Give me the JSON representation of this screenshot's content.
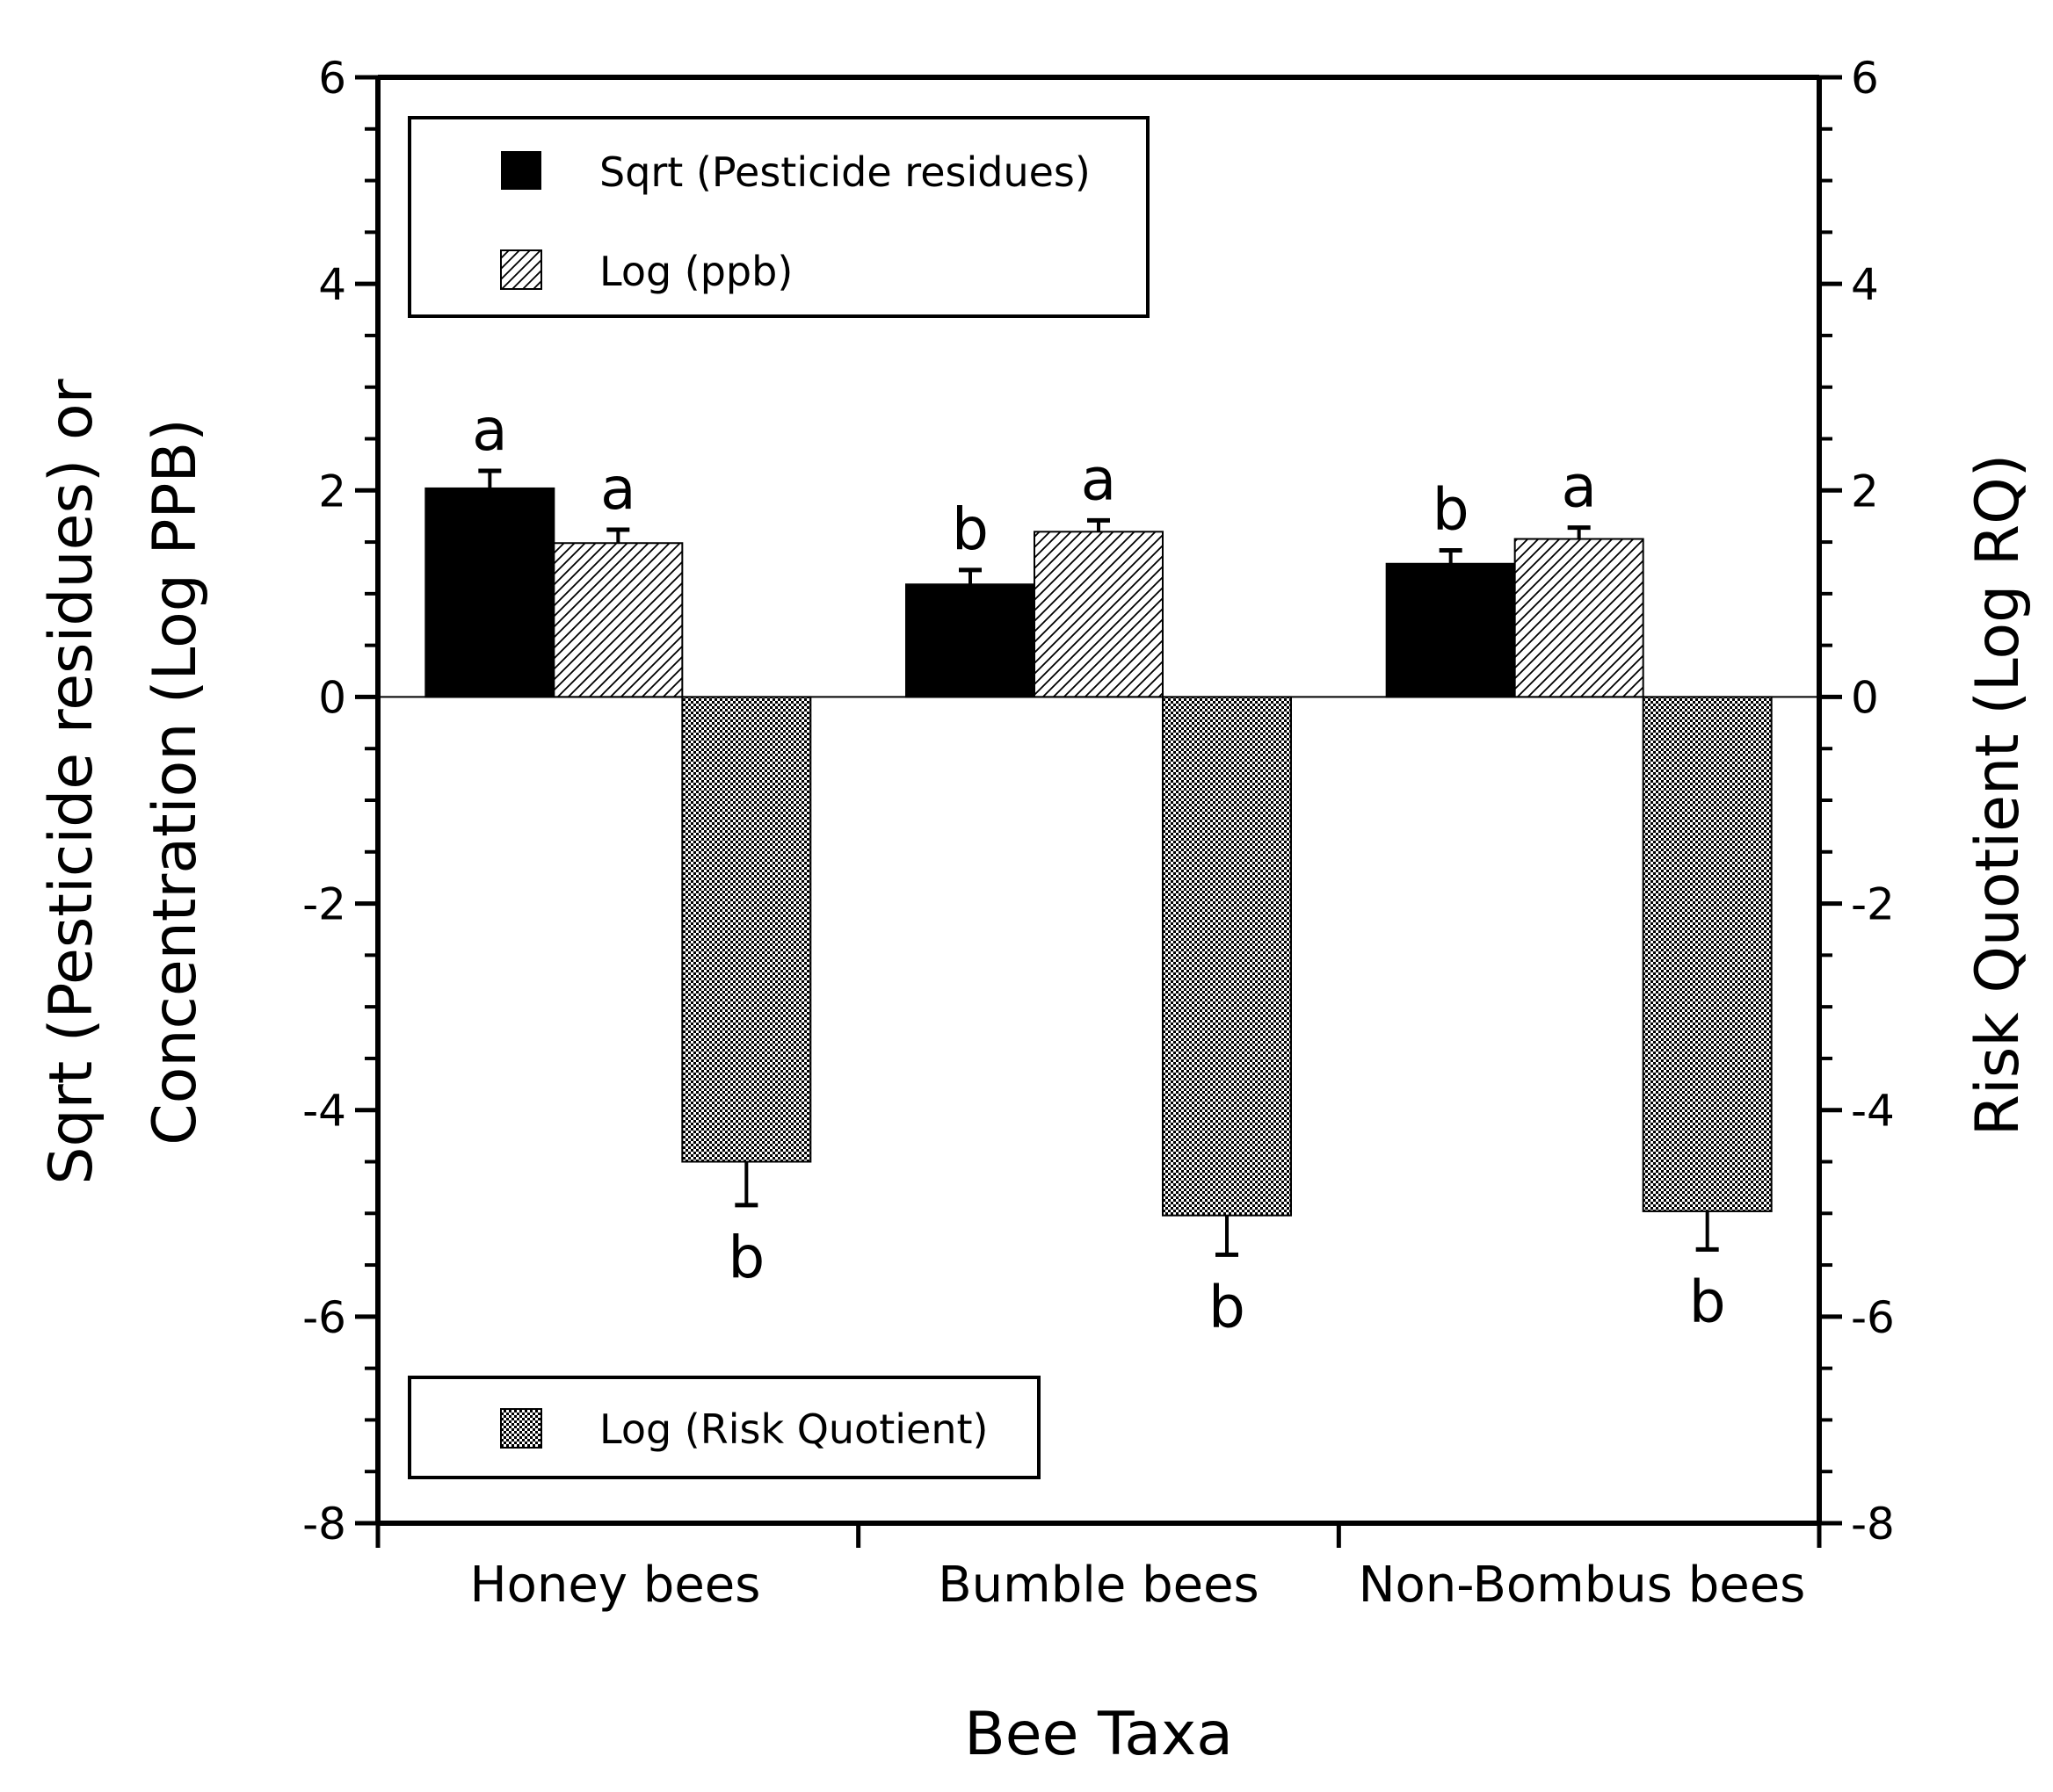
{
  "chart_data": {
    "type": "bar",
    "xlabel": "Bee Taxa",
    "ylabel_lines": [
      "Sqrt (Pesticide residues) or",
      "Concentration (Log PPB)"
    ],
    "y2label": "Risk Quotient (Log RQ)",
    "categories": [
      "Honey bees",
      "Bumble bees",
      "Non-Bombus bees"
    ],
    "ylim": [
      -8,
      6
    ],
    "y2lim": [
      -8,
      6
    ],
    "yticks": [
      6,
      4,
      2,
      0,
      -2,
      -4,
      -6,
      -8
    ],
    "minor_tick_step": 0.5,
    "grid": false,
    "series": [
      {
        "name": "Sqrt (Pesticide residues)",
        "pattern": "solid",
        "values": [
          2.02,
          1.09,
          1.29
        ],
        "errors": [
          0.17,
          0.14,
          0.13
        ],
        "letters": [
          "a",
          "b",
          "b"
        ]
      },
      {
        "name": "Log (ppb)",
        "pattern": "hatch",
        "values": [
          1.49,
          1.6,
          1.53
        ],
        "errors": [
          0.13,
          0.11,
          0.11
        ],
        "letters": [
          "a",
          "a",
          "a"
        ]
      },
      {
        "name": "Log (Risk Quotient)",
        "pattern": "checker",
        "values": [
          -4.5,
          -5.02,
          -4.98
        ],
        "errors": [
          0.42,
          0.38,
          0.37
        ],
        "letters": [
          "b",
          "b",
          "b"
        ]
      }
    ],
    "legends": [
      {
        "position": "top-left",
        "entries": [
          "Sqrt (Pesticide residues)",
          "Log (ppb)"
        ]
      },
      {
        "position": "bottom-left",
        "entries": [
          "Log (Risk Quotient)"
        ]
      }
    ]
  }
}
